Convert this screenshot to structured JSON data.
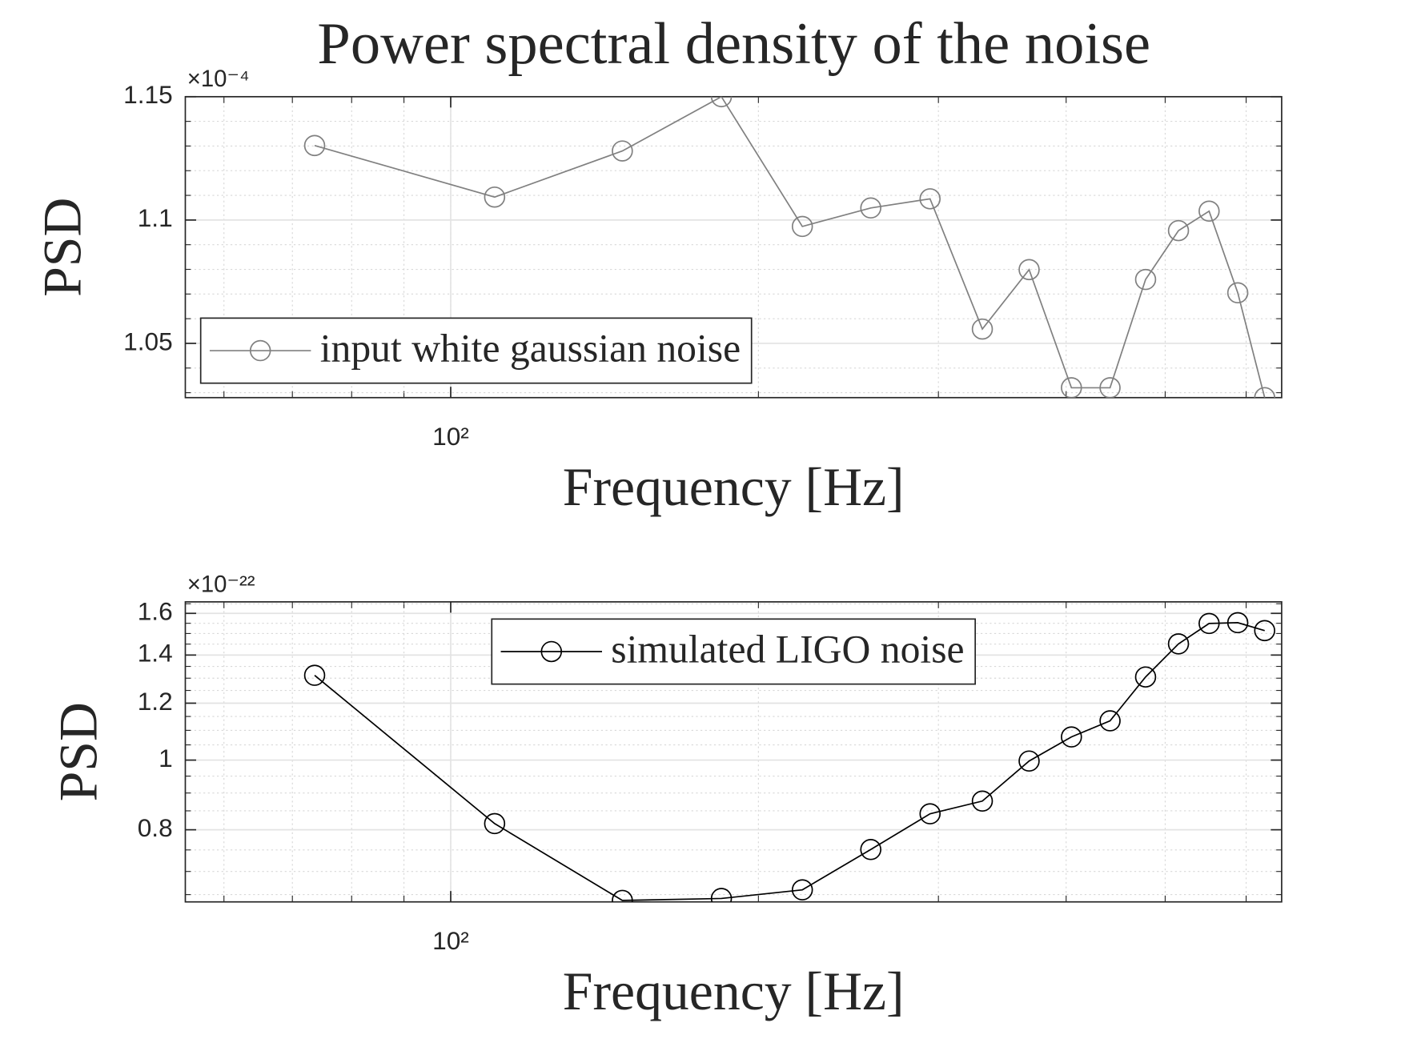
{
  "chart_data": [
    {
      "type": "line",
      "title": "Power spectral density of the noise",
      "xlabel": "Frequency [Hz]",
      "ylabel": "PSD",
      "y_multiplier": "×10⁻⁴",
      "xscale": "log",
      "yscale": "linear",
      "grid": true,
      "legend": "lower left",
      "xlim": [
        55,
        650
      ],
      "xticks": [
        {
          "value": 100,
          "label": "10²"
        }
      ],
      "ylim": [
        1.028,
        1.15
      ],
      "yticks": [
        1.05,
        1.1,
        1.15
      ],
      "x": [
        73.6,
        110.4,
        147.2,
        184,
        220.8,
        257.6,
        294.4,
        331.2,
        368,
        404.8,
        441.6,
        478.4,
        515.2,
        552,
        588.8,
        625.6
      ],
      "series": [
        {
          "name": "input white gaussian noise",
          "color": "#808080",
          "values": [
            1.1302,
            1.1093,
            1.128,
            1.15,
            1.0974,
            1.1049,
            1.1086,
            1.0558,
            1.0799,
            1.032,
            1.032,
            1.0759,
            1.0957,
            1.1036,
            1.0705,
            1.028
          ]
        }
      ]
    },
    {
      "type": "line",
      "xlabel": "Frequency [Hz]",
      "ylabel": "PSD",
      "y_multiplier": "×10⁻²²",
      "xscale": "log",
      "yscale": "log",
      "grid": true,
      "legend": "upper center",
      "xlim": [
        55,
        650
      ],
      "xticks": [
        {
          "value": 100,
          "label": "10²"
        }
      ],
      "ylim": [
        0.635,
        1.66
      ],
      "yticks": [
        0.8,
        1,
        1.2,
        1.4,
        1.6
      ],
      "x": [
        73.6,
        110.4,
        147.2,
        184,
        220.8,
        257.6,
        294.4,
        331.2,
        368,
        404.8,
        441.6,
        478.4,
        515.2,
        552,
        588.8,
        625.6
      ],
      "series": [
        {
          "name": "simulated LIGO noise",
          "color": "#000000",
          "values": [
            1.312,
            0.816,
            0.638,
            0.642,
            0.66,
            0.751,
            0.842,
            0.877,
            0.997,
            1.077,
            1.134,
            1.305,
            1.451,
            1.549,
            1.553,
            1.514
          ]
        }
      ]
    }
  ]
}
